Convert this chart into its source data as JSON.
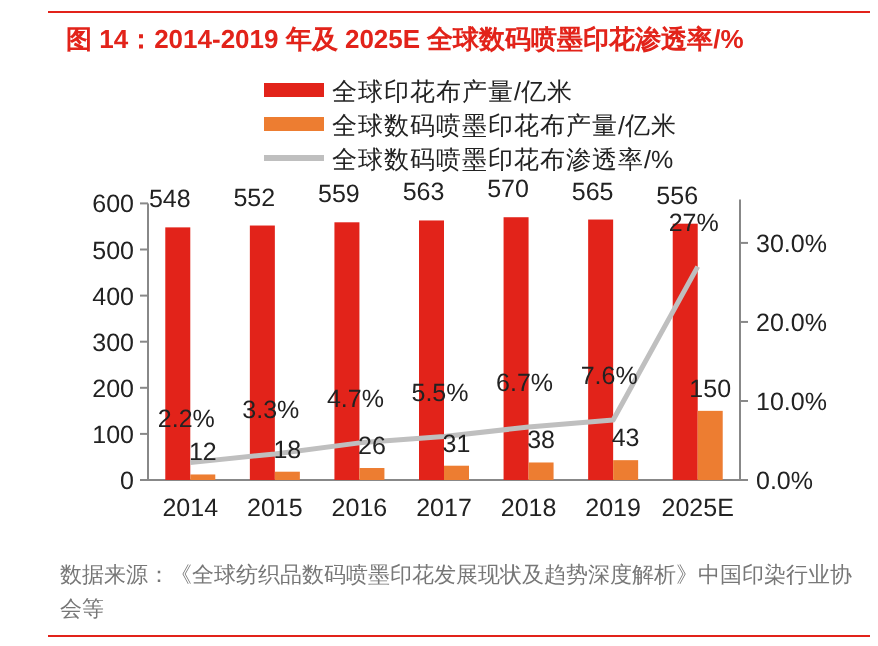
{
  "chart_data": {
    "type": "bar",
    "title": "图 14：2014-2019 年及 2025E 全球数码喷墨印花渗透率/%",
    "categories": [
      "2014",
      "2015",
      "2016",
      "2017",
      "2018",
      "2019",
      "2025E"
    ],
    "series": [
      {
        "name": "全球印花布产量/亿米",
        "color": "#e2231a",
        "values": [
          548,
          552,
          559,
          563,
          570,
          565,
          556
        ],
        "value_labels": [
          "548",
          "552",
          "559",
          "563",
          "570",
          "565",
          "556"
        ]
      },
      {
        "name": "全球数码喷墨印花布产量/亿米",
        "color": "#ed7d31",
        "values": [
          12,
          18,
          26,
          31,
          38,
          43,
          150
        ],
        "value_labels": [
          "12",
          "18",
          "26",
          "31",
          "38",
          "43",
          "150"
        ]
      },
      {
        "name": "全球数码喷墨印花布渗透率/%",
        "type": "line",
        "axis": "y2",
        "color": "#bfbfbf",
        "values": [
          2.2,
          3.3,
          4.7,
          5.5,
          6.7,
          7.6,
          27
        ],
        "value_labels": [
          "2.2%",
          "3.3%",
          "4.7%",
          "5.5%",
          "6.7%",
          "7.6%",
          "27%"
        ]
      }
    ],
    "ylim": [
      0,
      600
    ],
    "yticks": [
      0,
      100,
      200,
      300,
      400,
      500,
      600
    ],
    "y2lim": [
      0,
      35
    ],
    "y2ticks": [
      {
        "value": 0,
        "label": "0.0%"
      },
      {
        "value": 10,
        "label": "10.0%"
      },
      {
        "value": 20,
        "label": "20.0%"
      },
      {
        "value": 30,
        "label": "30.0%"
      }
    ],
    "legend": "top",
    "grid": false,
    "marker": "none",
    "annotations": [
      "数据来源：《全球纺织品数码喷墨印花发展现状及趋势深度解析》中国印染行业协会等"
    ]
  }
}
